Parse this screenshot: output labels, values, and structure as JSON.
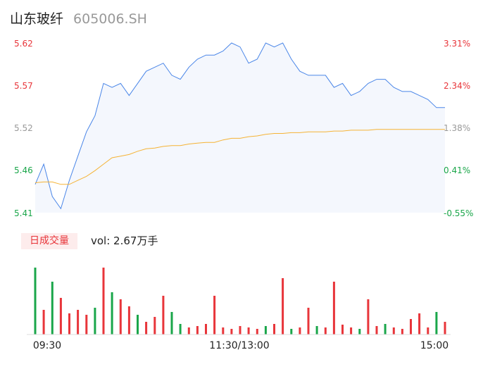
{
  "header": {
    "name": "山东玻纤",
    "code": "605006.SH"
  },
  "volume_panel": {
    "tag_label": "日成交量",
    "vol_label": "vol: 2.67万手"
  },
  "colors": {
    "price_line": "#4a86e8",
    "avg_line": "#f5b335",
    "up": "#e8353a",
    "down": "#1aa64a",
    "neutral": "#999999",
    "fill": "#f4f7fd"
  },
  "chart_data": [
    {
      "type": "line",
      "title": "",
      "y_left_ticks": [
        "5.62",
        "5.57",
        "5.52",
        "5.46",
        "5.41"
      ],
      "y_left_colors": [
        "up",
        "up",
        "neutral",
        "down",
        "down"
      ],
      "y_right_ticks": [
        "3.31%",
        "2.34%",
        "1.38%",
        "0.41%",
        "-0.55%"
      ],
      "y_right_colors": [
        "up",
        "up",
        "neutral",
        "down",
        "down"
      ],
      "ylim": [
        5.41,
        5.62
      ],
      "x_ticks": [
        "09:30",
        "11:30/13:00",
        "15:00"
      ],
      "x": [
        0,
        5,
        10,
        15,
        20,
        25,
        30,
        35,
        40,
        45,
        50,
        55,
        60,
        65,
        70,
        75,
        80,
        85,
        90,
        95,
        100,
        105,
        110,
        115,
        120,
        125,
        130,
        135,
        140,
        145,
        150,
        155,
        160,
        165,
        170,
        175,
        180,
        185,
        190,
        195,
        200,
        205,
        210,
        215,
        220,
        225,
        230,
        235,
        240
      ],
      "series": [
        {
          "key": "price",
          "values": [
            5.445,
            5.47,
            5.43,
            5.415,
            5.45,
            5.48,
            5.51,
            5.53,
            5.57,
            5.565,
            5.57,
            5.555,
            5.57,
            5.585,
            5.59,
            5.595,
            5.58,
            5.575,
            5.59,
            5.6,
            5.605,
            5.605,
            5.61,
            5.62,
            5.615,
            5.595,
            5.6,
            5.62,
            5.615,
            5.62,
            5.6,
            5.585,
            5.58,
            5.58,
            5.58,
            5.565,
            5.57,
            5.555,
            5.56,
            5.57,
            5.575,
            5.575,
            5.565,
            5.56,
            5.56,
            5.555,
            5.55,
            5.54,
            5.54
          ]
        },
        {
          "key": "average",
          "values": [
            5.447,
            5.448,
            5.448,
            5.445,
            5.445,
            5.45,
            5.455,
            5.462,
            5.47,
            5.478,
            5.48,
            5.482,
            5.486,
            5.489,
            5.49,
            5.492,
            5.493,
            5.493,
            5.495,
            5.496,
            5.497,
            5.497,
            5.5,
            5.502,
            5.502,
            5.504,
            5.505,
            5.507,
            5.508,
            5.508,
            5.509,
            5.509,
            5.51,
            5.51,
            5.51,
            5.511,
            5.511,
            5.512,
            5.512,
            5.512,
            5.513,
            5.513,
            5.513,
            5.513,
            5.513,
            5.513,
            5.513,
            5.513,
            5.513
          ]
        }
      ]
    },
    {
      "type": "bar",
      "title": "",
      "x": [
        0,
        5,
        10,
        15,
        20,
        25,
        30,
        35,
        40,
        45,
        50,
        55,
        60,
        65,
        70,
        75,
        80,
        85,
        90,
        95,
        100,
        105,
        110,
        115,
        120,
        125,
        130,
        135,
        140,
        145,
        150,
        155,
        160,
        165,
        170,
        175,
        180,
        185,
        190,
        195,
        200,
        205,
        210,
        215,
        220,
        225,
        230,
        235,
        240
      ],
      "values": [
        95,
        35,
        75,
        52,
        30,
        35,
        28,
        38,
        95,
        60,
        50,
        40,
        28,
        18,
        25,
        55,
        32,
        15,
        10,
        12,
        15,
        55,
        10,
        8,
        12,
        10,
        8,
        12,
        15,
        80,
        8,
        10,
        38,
        12,
        10,
        75,
        14,
        10,
        8,
        50,
        12,
        15,
        10,
        8,
        22,
        30,
        10,
        32,
        18
      ],
      "directions": [
        "down",
        "up",
        "down",
        "up",
        "up",
        "up",
        "up",
        "down",
        "up",
        "down",
        "up",
        "up",
        "down",
        "up",
        "up",
        "up",
        "down",
        "down",
        "up",
        "up",
        "up",
        "up",
        "up",
        "up",
        "up",
        "up",
        "up",
        "down",
        "up",
        "up",
        "down",
        "up",
        "up",
        "down",
        "up",
        "up",
        "up",
        "up",
        "down",
        "up",
        "up",
        "down",
        "up",
        "up",
        "up",
        "up",
        "up",
        "down",
        "up"
      ],
      "ylim": [
        0,
        95
      ]
    }
  ]
}
